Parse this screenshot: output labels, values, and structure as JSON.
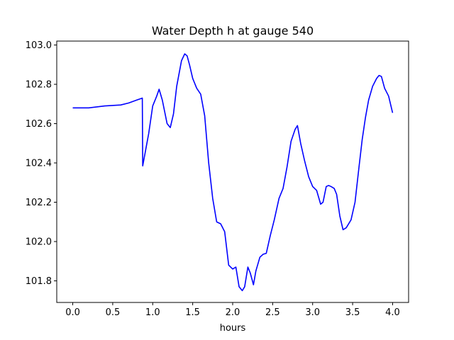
{
  "chart_data": {
    "type": "line",
    "title": "Water Depth h at gauge 540",
    "xlabel": "hours",
    "ylabel": "",
    "xlim": [
      -0.2,
      4.2
    ],
    "ylim": [
      101.69,
      103.02
    ],
    "xticks": [
      0.0,
      0.5,
      1.0,
      1.5,
      2.0,
      2.5,
      3.0,
      3.5,
      4.0
    ],
    "xtick_labels": [
      "0.0",
      "0.5",
      "1.0",
      "1.5",
      "2.0",
      "2.5",
      "3.0",
      "3.5",
      "4.0"
    ],
    "yticks": [
      101.8,
      102.0,
      102.2,
      102.4,
      102.6,
      102.8,
      103.0
    ],
    "ytick_labels": [
      "101.8",
      "102.0",
      "102.2",
      "102.4",
      "102.6",
      "102.8",
      "103.0"
    ],
    "grid": false,
    "legend": "none",
    "series": [
      {
        "color": "#0000ff",
        "x": [
          0.0,
          0.2,
          0.4,
          0.6,
          0.7,
          0.8,
          0.87,
          0.875,
          0.9,
          0.95,
          1.0,
          1.05,
          1.08,
          1.12,
          1.18,
          1.22,
          1.26,
          1.3,
          1.36,
          1.4,
          1.43,
          1.46,
          1.5,
          1.55,
          1.6,
          1.65,
          1.7,
          1.75,
          1.8,
          1.85,
          1.9,
          1.95,
          2.0,
          2.04,
          2.08,
          2.12,
          2.15,
          2.19,
          2.22,
          2.26,
          2.29,
          2.34,
          2.38,
          2.42,
          2.47,
          2.52,
          2.58,
          2.63,
          2.68,
          2.73,
          2.78,
          2.81,
          2.85,
          2.9,
          2.95,
          3.0,
          3.05,
          3.1,
          3.13,
          3.17,
          3.2,
          3.23,
          3.27,
          3.3,
          3.34,
          3.38,
          3.42,
          3.48,
          3.53,
          3.58,
          3.62,
          3.66,
          3.7,
          3.75,
          3.8,
          3.83,
          3.86,
          3.9,
          3.95,
          4.0
        ],
        "y": [
          102.68,
          102.68,
          102.69,
          102.695,
          102.705,
          102.72,
          102.73,
          102.385,
          102.44,
          102.55,
          102.69,
          102.74,
          102.775,
          102.72,
          102.6,
          102.58,
          102.65,
          102.79,
          102.92,
          102.955,
          102.945,
          102.9,
          102.83,
          102.78,
          102.75,
          102.64,
          102.4,
          102.22,
          102.1,
          102.09,
          102.05,
          101.88,
          101.86,
          101.87,
          101.77,
          101.75,
          101.77,
          101.87,
          101.84,
          101.78,
          101.85,
          101.92,
          101.935,
          101.94,
          102.03,
          102.11,
          102.22,
          102.27,
          102.38,
          102.51,
          102.57,
          102.59,
          102.5,
          102.41,
          102.33,
          102.28,
          102.26,
          102.19,
          102.2,
          102.28,
          102.285,
          102.28,
          102.27,
          102.24,
          102.13,
          102.06,
          102.07,
          102.11,
          102.2,
          102.38,
          102.52,
          102.63,
          102.72,
          102.79,
          102.83,
          102.845,
          102.84,
          102.78,
          102.74,
          102.655
        ]
      }
    ]
  }
}
